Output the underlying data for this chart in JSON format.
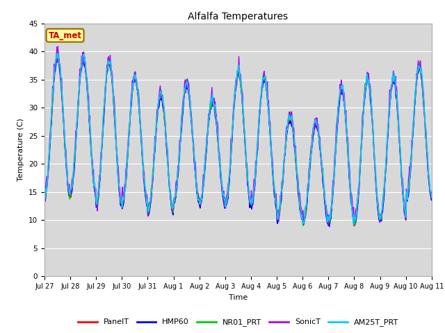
{
  "title": "Alfalfa Temperatures",
  "xlabel": "Time",
  "ylabel": "Temperature (C)",
  "ylim": [
    0,
    45
  ],
  "annotation": "TA_met",
  "bg_color": "#d8d8d8",
  "fig_color": "#ffffff",
  "grid_color": "#ffffff",
  "series_order": [
    "PanelT",
    "HMP60",
    "NR01_PRT",
    "SonicT",
    "AM25T_PRT"
  ],
  "series": {
    "PanelT": {
      "color": "#ff0000",
      "lw": 1.0
    },
    "HMP60": {
      "color": "#0000ff",
      "lw": 1.0
    },
    "NR01_PRT": {
      "color": "#00cc00",
      "lw": 1.0
    },
    "SonicT": {
      "color": "#aa00ff",
      "lw": 1.0
    },
    "AM25T_PRT": {
      "color": "#00ccff",
      "lw": 1.2
    }
  },
  "tick_labels": [
    "Jul 27",
    "Jul 28",
    "Jul 29",
    "Jul 30",
    "Jul 31",
    "Aug 1",
    "Aug 2",
    "Aug 3",
    "Aug 4",
    "Aug 5",
    "Aug 6",
    "Aug 7",
    "Aug 8",
    "Aug 9",
    "Aug 10",
    "Aug 11"
  ],
  "yticks": [
    0,
    5,
    10,
    15,
    20,
    25,
    30,
    35,
    40,
    45
  ],
  "peak_vals": [
    39,
    38.5,
    38,
    35,
    32,
    34,
    31,
    36,
    35,
    28,
    27,
    33,
    35,
    35,
    37
  ],
  "trough_vals": [
    14,
    14.5,
    12.5,
    12.5,
    11,
    13,
    12.5,
    12.5,
    12.5,
    10,
    9.5,
    9.5,
    9.5,
    10.5,
    13.5
  ],
  "offsets": {
    "PanelT": 0.0,
    "HMP60": -0.3,
    "NR01_PRT": 0.5,
    "SonicT": 0.8,
    "AM25T_PRT": 0.5
  },
  "noise_scale": {
    "PanelT": 0.3,
    "HMP60": 0.3,
    "NR01_PRT": 0.5,
    "SonicT": 0.8,
    "AM25T_PRT": 0.4
  }
}
